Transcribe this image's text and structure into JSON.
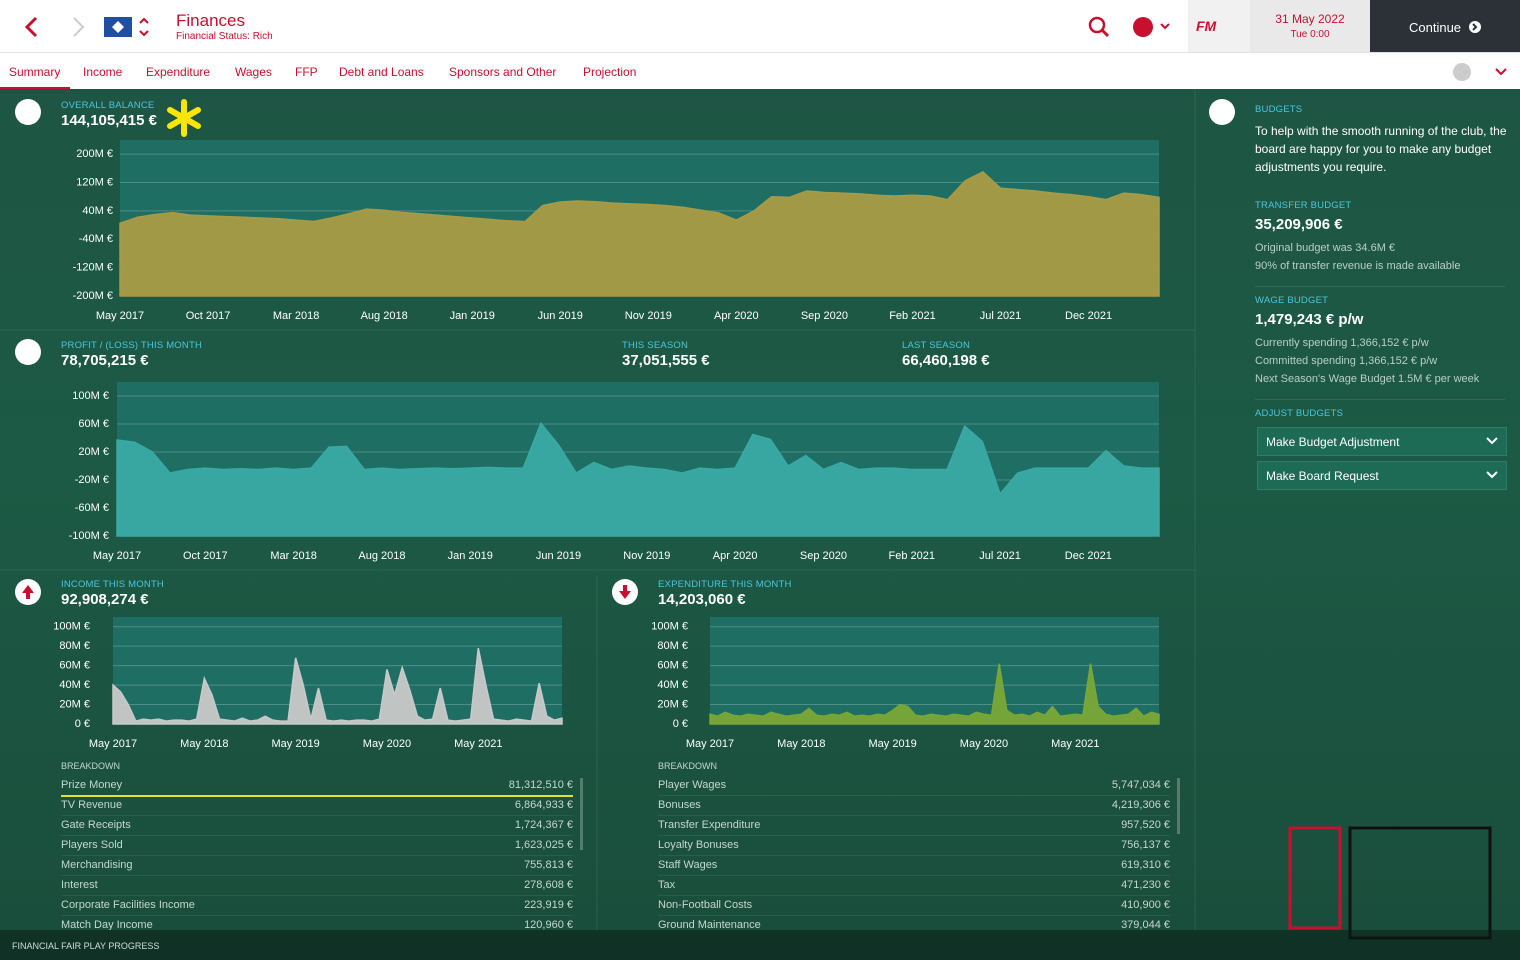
{
  "header": {
    "title": "Finances",
    "subtitle": "Financial Status: Rich",
    "brand": "FM",
    "date": "31 May 2022",
    "time": "Tue 0:00",
    "continue": "Continue"
  },
  "tabs": [
    "Summary",
    "Income",
    "Expenditure",
    "Wages",
    "FFP",
    "Debt and Loans",
    "Sponsors and Other",
    "Projection"
  ],
  "balance": {
    "label": "OVERALL BALANCE",
    "value": "144,105,415 €"
  },
  "profit": {
    "label": "PROFIT / (LOSS) THIS MONTH",
    "value": "78,705,215 €",
    "season_label": "THIS SEASON",
    "season_value": "37,051,555 €",
    "last_label": "LAST SEASON",
    "last_value": "66,460,198 €"
  },
  "income": {
    "label": "INCOME THIS MONTH",
    "value": "92,908,274 €",
    "breakdown": "BREAKDOWN",
    "rows": [
      [
        "Prize Money",
        "81,312,510 €"
      ],
      [
        "TV Revenue",
        "6,864,933 €"
      ],
      [
        "Gate Receipts",
        "1,724,367 €"
      ],
      [
        "Players Sold",
        "1,623,025 €"
      ],
      [
        "Merchandising",
        "755,813 €"
      ],
      [
        "Interest",
        "278,608 €"
      ],
      [
        "Corporate Facilities Income",
        "223,919 €"
      ],
      [
        "Match Day Income",
        "120,960 €"
      ]
    ]
  },
  "expenditure": {
    "label": "EXPENDITURE THIS MONTH",
    "value": "14,203,060 €",
    "breakdown": "BREAKDOWN",
    "rows": [
      [
        "Player Wages",
        "5,747,034 €"
      ],
      [
        "Bonuses",
        "4,219,306 €"
      ],
      [
        "Transfer Expenditure",
        "957,520 €"
      ],
      [
        "Loyalty Bonuses",
        "756,137 €"
      ],
      [
        "Staff Wages",
        "619,310 €"
      ],
      [
        "Tax",
        "471,230 €"
      ],
      [
        "Non-Football Costs",
        "410,900 €"
      ],
      [
        "Ground Maintenance",
        "379,044 €"
      ]
    ]
  },
  "budgets": {
    "title": "BUDGETS",
    "intro": "To help with the smooth running of the club, the board are happy for you to make any budget adjustments you require.",
    "transfer_label": "TRANSFER BUDGET",
    "transfer_value": "35,209,906 €",
    "transfer_notes": [
      "Original budget was 34.6M €",
      "90% of transfer revenue is made available"
    ],
    "wage_label": "WAGE BUDGET",
    "wage_value": "1,479,243 € p/w",
    "wage_notes": [
      "Currently spending 1,366,152 € p/w",
      "Committed spending 1,366,152 € p/w",
      "Next Season's Wage Budget 1.5M € per week"
    ],
    "adjust_label": "ADJUST BUDGETS",
    "buttons": [
      "Make Budget Adjustment",
      "Make Board Request"
    ]
  },
  "footer": "FINANCIAL FAIR PLAY PROGRESS",
  "chart_data": [
    {
      "type": "area",
      "color": "#a99b45",
      "categories": [
        "May 2017",
        null,
        null,
        null,
        null,
        "Oct 2017",
        null,
        null,
        null,
        null,
        "Mar 2018",
        null,
        null,
        null,
        null,
        "Aug 2018",
        null,
        null,
        null,
        null,
        "Jan 2019",
        null,
        null,
        null,
        null,
        "Jun 2019",
        null,
        null,
        null,
        null,
        "Nov 2019",
        null,
        null,
        null,
        null,
        "Apr 2020",
        null,
        null,
        null,
        null,
        "Sep 2020",
        null,
        null,
        null,
        null,
        "Feb 2021",
        null,
        null,
        null,
        null,
        "Jul 2021",
        null,
        null,
        null,
        null,
        "Dec 2021",
        null,
        null,
        null,
        null
      ],
      "values": [
        5,
        22,
        30,
        35,
        28,
        26,
        24,
        22,
        20,
        18,
        14,
        10,
        20,
        32,
        45,
        42,
        36,
        32,
        28,
        24,
        20,
        16,
        12,
        10,
        55,
        65,
        68,
        66,
        62,
        60,
        58,
        55,
        50,
        42,
        34,
        14,
        40,
        80,
        78,
        96,
        92,
        90,
        88,
        84,
        82,
        84,
        82,
        72,
        125,
        150,
        104,
        100,
        96,
        90,
        86,
        80,
        72,
        90,
        86,
        78
      ],
      "ylim": [
        -200,
        240
      ],
      "yticks": [
        {
          "value": 200,
          "label": "200M €"
        },
        {
          "value": 120,
          "label": "120M €"
        },
        {
          "value": 40,
          "label": "40M €"
        },
        {
          "value": -40,
          "label": "-40M €"
        },
        {
          "value": -120,
          "label": "-120M €"
        },
        {
          "value": -200,
          "label": "-200M €"
        }
      ],
      "grid": true
    },
    {
      "type": "area",
      "color": "#3aa9a4",
      "categories": [
        "May 2017",
        null,
        null,
        null,
        null,
        "Oct 2017",
        null,
        null,
        null,
        null,
        "Mar 2018",
        null,
        null,
        null,
        null,
        "Aug 2018",
        null,
        null,
        null,
        null,
        "Jan 2019",
        null,
        null,
        null,
        null,
        "Jun 2019",
        null,
        null,
        null,
        null,
        "Nov 2019",
        null,
        null,
        null,
        null,
        "Apr 2020",
        null,
        null,
        null,
        null,
        "Sep 2020",
        null,
        null,
        null,
        null,
        "Feb 2021",
        null,
        null,
        null,
        null,
        "Jul 2021",
        null,
        null,
        null,
        null,
        "Dec 2021",
        null,
        null,
        null,
        null
      ],
      "values": [
        37,
        34,
        20,
        -10,
        -5,
        -3,
        -5,
        -4,
        -5,
        -3,
        -5,
        -3,
        27,
        28,
        -5,
        -3,
        -5,
        -4,
        -3,
        -4,
        -3,
        -2,
        -3,
        -3,
        61,
        30,
        -10,
        5,
        -5,
        0,
        -3,
        -5,
        -10,
        -3,
        -5,
        -3,
        45,
        38,
        0,
        15,
        -5,
        5,
        -5,
        -3,
        -3,
        -5,
        -5,
        -5,
        57,
        35,
        -40,
        -10,
        -3,
        -3,
        -3,
        -3,
        22,
        0,
        -3,
        -3
      ],
      "ylim": [
        -100,
        120
      ],
      "yticks": [
        {
          "value": 100,
          "label": "100M €"
        },
        {
          "value": 60,
          "label": "60M €"
        },
        {
          "value": 20,
          "label": "20M €"
        },
        {
          "value": -20,
          "label": "-20M €"
        },
        {
          "value": -60,
          "label": "-60M €"
        },
        {
          "value": -100,
          "label": "-100M €"
        }
      ],
      "grid": true
    },
    {
      "type": "area",
      "color": "#c9c9c9",
      "categories": [
        "May 2017",
        null,
        null,
        null,
        null,
        null,
        null,
        null,
        null,
        null,
        null,
        null,
        "May 2018",
        null,
        null,
        null,
        null,
        null,
        null,
        null,
        null,
        null,
        null,
        null,
        "May 2019",
        null,
        null,
        null,
        null,
        null,
        null,
        null,
        null,
        null,
        null,
        null,
        "May 2020",
        null,
        null,
        null,
        null,
        null,
        null,
        null,
        null,
        null,
        null,
        null,
        "May 2021",
        null,
        null,
        null,
        null,
        null,
        null,
        null,
        null,
        null,
        null,
        null
      ],
      "values": [
        40,
        33,
        20,
        3,
        5,
        4,
        5,
        3,
        4,
        4,
        3,
        5,
        47,
        30,
        5,
        4,
        3,
        6,
        3,
        4,
        8,
        4,
        3,
        3,
        68,
        40,
        5,
        37,
        4,
        3,
        4,
        3,
        4,
        4,
        3,
        5,
        56,
        30,
        58,
        35,
        8,
        4,
        5,
        37,
        4,
        3,
        4,
        5,
        78,
        40,
        5,
        4,
        3,
        5,
        4,
        3,
        42,
        8,
        4,
        6
      ],
      "ylim": [
        0,
        110
      ],
      "yticks": [
        {
          "value": 100,
          "label": "100M €"
        },
        {
          "value": 80,
          "label": "80M €"
        },
        {
          "value": 60,
          "label": "60M €"
        },
        {
          "value": 40,
          "label": "40M €"
        },
        {
          "value": 20,
          "label": "20M €"
        },
        {
          "value": 0,
          "label": "0 €"
        }
      ],
      "grid": true
    },
    {
      "type": "area",
      "color": "#7aa637",
      "categories": [
        "May 2017",
        null,
        null,
        null,
        null,
        null,
        null,
        null,
        null,
        null,
        null,
        null,
        "May 2018",
        null,
        null,
        null,
        null,
        null,
        null,
        null,
        null,
        null,
        null,
        null,
        "May 2019",
        null,
        null,
        null,
        null,
        null,
        null,
        null,
        null,
        null,
        null,
        null,
        "May 2020",
        null,
        null,
        null,
        null,
        null,
        null,
        null,
        null,
        null,
        null,
        null,
        "May 2021",
        null,
        null,
        null,
        null,
        null,
        null,
        null,
        null,
        null,
        null,
        null
      ],
      "values": [
        10,
        8,
        12,
        9,
        8,
        10,
        9,
        8,
        12,
        10,
        8,
        9,
        10,
        16,
        9,
        8,
        10,
        9,
        12,
        8,
        9,
        8,
        10,
        9,
        14,
        20,
        18,
        9,
        8,
        10,
        9,
        8,
        10,
        9,
        8,
        12,
        10,
        9,
        62,
        14,
        9,
        10,
        8,
        12,
        9,
        18,
        8,
        9,
        10,
        9,
        62,
        18,
        10,
        8,
        9,
        10,
        16,
        8,
        12,
        10
      ],
      "ylim": [
        0,
        110
      ],
      "yticks": [
        {
          "value": 100,
          "label": "100M €"
        },
        {
          "value": 80,
          "label": "80M €"
        },
        {
          "value": 60,
          "label": "60M €"
        },
        {
          "value": 40,
          "label": "40M €"
        },
        {
          "value": 20,
          "label": "20M €"
        },
        {
          "value": 0,
          "label": "0 €"
        }
      ],
      "grid": true
    }
  ]
}
